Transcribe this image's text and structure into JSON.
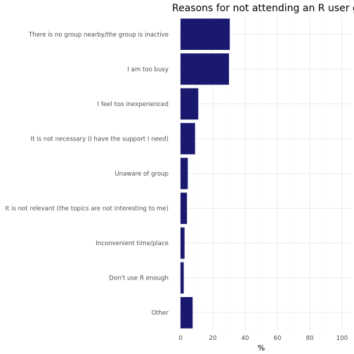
{
  "chart_data": {
    "type": "bar",
    "orientation": "horizontal",
    "title": "Reasons for not attending an R user group",
    "xlabel": "%",
    "ylabel": "",
    "xlim": [
      0,
      100
    ],
    "xticks": [
      0,
      20,
      40,
      60,
      80,
      100
    ],
    "grid": true,
    "bar_color": "#191970",
    "categories": [
      "There is no group nearby/the group is inactive",
      "I am too busy",
      "I feel too inexperienced",
      "It is not necessary (I have the support I need)",
      "Unaware of group",
      "It is not relevant (the topics are not interesting to me)",
      "Inconvenient time/place",
      "Don't use R enough",
      "Other"
    ],
    "values": [
      30.5,
      30,
      11,
      9,
      4.5,
      4,
      2.5,
      2,
      7.5
    ]
  }
}
